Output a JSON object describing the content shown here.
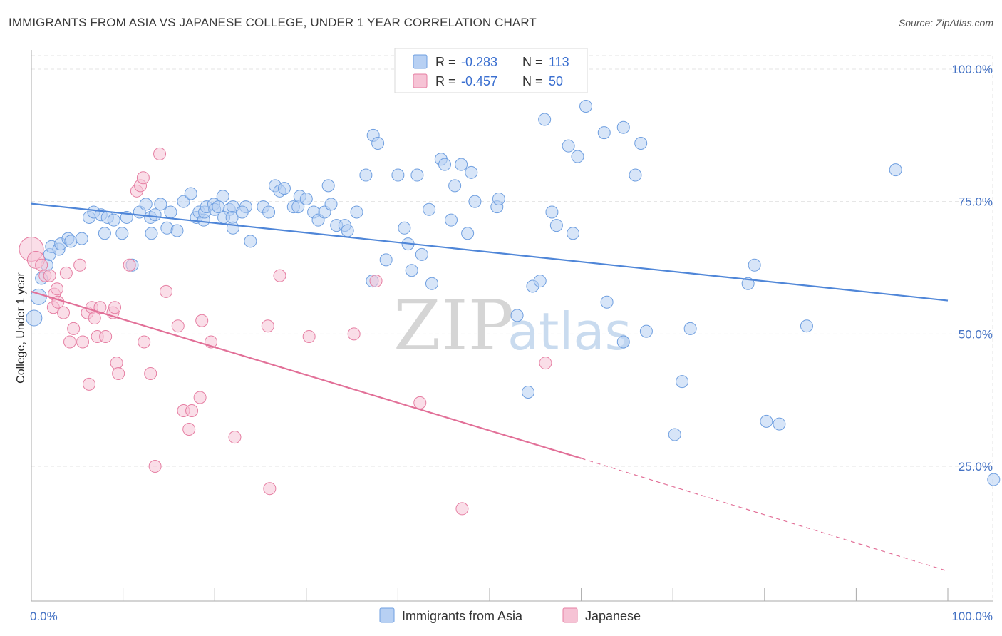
{
  "chart_data": {
    "type": "scatter",
    "title": "IMMIGRANTS FROM ASIA VS JAPANESE COLLEGE, UNDER 1 YEAR CORRELATION CHART",
    "source": "Source: ZipAtlas.com",
    "ylabel": "College, Under 1 year",
    "xlim": [
      0,
      100
    ],
    "ylim": [
      0,
      105
    ],
    "x_tick_labels": [
      "0.0%",
      "100.0%"
    ],
    "y_tick_values": [
      25,
      50,
      75,
      100
    ],
    "y_tick_labels": [
      "25.0%",
      "50.0%",
      "75.0%",
      "100.0%"
    ],
    "watermark": {
      "zip": "ZIP",
      "atlas": "atlas"
    },
    "legend": [
      {
        "name": "Immigrants from Asia",
        "r_label": "R =",
        "r": "-0.283",
        "n_label": "N =",
        "n": "113",
        "color": "#6f9fe0",
        "fill": "#b7d0f3"
      },
      {
        "name": "Japanese",
        "r_label": "R =",
        "r": "-0.457",
        "n_label": "N =",
        "n": "50",
        "color": "#e67fa3",
        "fill": "#f6c3d5"
      }
    ],
    "series": [
      {
        "name": "Immigrants from Asia",
        "color": "#4f86d8",
        "trend": {
          "x0": 0,
          "y0": 74.6,
          "x1": 100,
          "y1": 56.3
        },
        "points": [
          [
            0.3,
            53
          ],
          [
            0.8,
            57
          ],
          [
            1.1,
            60.5
          ],
          [
            1.7,
            63
          ],
          [
            2,
            65
          ],
          [
            2.2,
            66.5
          ],
          [
            3,
            66
          ],
          [
            3.2,
            67
          ],
          [
            4,
            68
          ],
          [
            4.3,
            67.5
          ],
          [
            5.5,
            68
          ],
          [
            6.3,
            72
          ],
          [
            6.8,
            73
          ],
          [
            7.6,
            72.5
          ],
          [
            8,
            69
          ],
          [
            8.3,
            72
          ],
          [
            9,
            71.5
          ],
          [
            9.9,
            69
          ],
          [
            10.4,
            72
          ],
          [
            11,
            63
          ],
          [
            11.8,
            73
          ],
          [
            12.5,
            74.5
          ],
          [
            13,
            72
          ],
          [
            13.1,
            69
          ],
          [
            13.5,
            72.5
          ],
          [
            14.1,
            74.5
          ],
          [
            14.8,
            70
          ],
          [
            15.2,
            73
          ],
          [
            15.9,
            69.5
          ],
          [
            16.6,
            75
          ],
          [
            17.4,
            76.5
          ],
          [
            18,
            72
          ],
          [
            18.3,
            73
          ],
          [
            18.8,
            71.5
          ],
          [
            18.9,
            73
          ],
          [
            19.1,
            74
          ],
          [
            19.9,
            74.5
          ],
          [
            20,
            73.5
          ],
          [
            20.9,
            76
          ],
          [
            21.6,
            73.5
          ],
          [
            20.4,
            74
          ],
          [
            21,
            72
          ],
          [
            22,
            74
          ],
          [
            21.9,
            72
          ],
          [
            22,
            70
          ],
          [
            23.4,
            74
          ],
          [
            23,
            73
          ],
          [
            23.9,
            67.5
          ],
          [
            25.3,
            74
          ],
          [
            25.9,
            73
          ],
          [
            26.6,
            78
          ],
          [
            27.1,
            77
          ],
          [
            27.6,
            77.5
          ],
          [
            28.6,
            74
          ],
          [
            29.1,
            74
          ],
          [
            29.3,
            76
          ],
          [
            30,
            75.5
          ],
          [
            30.8,
            73
          ],
          [
            31.3,
            71.5
          ],
          [
            32,
            73
          ],
          [
            32.4,
            78
          ],
          [
            32.7,
            74.5
          ],
          [
            33.3,
            70.5
          ],
          [
            34.2,
            70.5
          ],
          [
            34.5,
            69.5
          ],
          [
            35.5,
            73
          ],
          [
            36.5,
            80
          ],
          [
            37.3,
            87.5
          ],
          [
            37.8,
            86
          ],
          [
            37.2,
            60
          ],
          [
            38.7,
            64
          ],
          [
            40,
            80
          ],
          [
            40.7,
            70
          ],
          [
            41.1,
            67
          ],
          [
            41.5,
            62
          ],
          [
            42.1,
            80
          ],
          [
            42.6,
            65
          ],
          [
            43.4,
            73.5
          ],
          [
            43.7,
            59.5
          ],
          [
            44.7,
            83
          ],
          [
            45.1,
            82
          ],
          [
            45.8,
            71.5
          ],
          [
            46.2,
            78
          ],
          [
            46.9,
            82
          ],
          [
            47.6,
            69
          ],
          [
            48,
            80.5
          ],
          [
            48.4,
            75
          ],
          [
            50.8,
            74
          ],
          [
            51,
            75.5
          ],
          [
            53,
            53.5
          ],
          [
            54.2,
            39
          ],
          [
            54.7,
            59
          ],
          [
            55.5,
            60
          ],
          [
            56,
            90.5
          ],
          [
            56.8,
            73
          ],
          [
            57.3,
            70.5
          ],
          [
            58.6,
            85.5
          ],
          [
            59.1,
            69
          ],
          [
            59.6,
            83.5
          ],
          [
            60.5,
            93
          ],
          [
            62.5,
            88
          ],
          [
            62.8,
            56
          ],
          [
            64.6,
            48.5
          ],
          [
            64.6,
            89
          ],
          [
            65.9,
            80
          ],
          [
            66.5,
            86
          ],
          [
            67.1,
            50.5
          ],
          [
            70.2,
            31
          ],
          [
            71,
            41
          ],
          [
            71.9,
            51
          ],
          [
            78.2,
            59.5
          ],
          [
            78.9,
            63
          ],
          [
            80.2,
            33.5
          ],
          [
            81.6,
            33
          ],
          [
            84.6,
            51.5
          ],
          [
            94.3,
            81
          ],
          [
            105,
            22.5
          ]
        ]
      },
      {
        "name": "Japanese",
        "color": "#e27098",
        "trend": {
          "x0": 0,
          "y0": 58,
          "x1": 60,
          "y1": 26.5
        },
        "trend_dashed": {
          "x0": 60,
          "y0": 26.5,
          "x1": 100,
          "y1": 5.2
        },
        "points": [
          [
            0,
            66
          ],
          [
            0.5,
            64
          ],
          [
            1.1,
            63
          ],
          [
            1.5,
            61
          ],
          [
            2,
            61
          ],
          [
            2.5,
            57.5
          ],
          [
            2.8,
            58.5
          ],
          [
            2.4,
            55
          ],
          [
            2.9,
            56
          ],
          [
            3.5,
            54
          ],
          [
            3.8,
            61.5
          ],
          [
            4.2,
            48.5
          ],
          [
            4.6,
            51
          ],
          [
            5.3,
            63
          ],
          [
            5.6,
            48.5
          ],
          [
            6.1,
            54
          ],
          [
            6.3,
            40.5
          ],
          [
            6.6,
            55
          ],
          [
            6.9,
            53
          ],
          [
            7.2,
            49.5
          ],
          [
            7.5,
            55
          ],
          [
            8.1,
            49.5
          ],
          [
            8.9,
            54
          ],
          [
            9.1,
            55
          ],
          [
            9.3,
            44.5
          ],
          [
            9.5,
            42.5
          ],
          [
            10.7,
            63
          ],
          [
            11.5,
            77
          ],
          [
            11.9,
            78
          ],
          [
            12.2,
            79.5
          ],
          [
            12.3,
            48.5
          ],
          [
            13,
            42.5
          ],
          [
            13.5,
            25
          ],
          [
            14,
            84
          ],
          [
            14.7,
            58
          ],
          [
            16,
            51.5
          ],
          [
            16.6,
            35.5
          ],
          [
            17.2,
            32
          ],
          [
            17.5,
            35.5
          ],
          [
            18.4,
            38
          ],
          [
            18.6,
            52.5
          ],
          [
            19.6,
            48.5
          ],
          [
            22.2,
            30.5
          ],
          [
            25.8,
            51.5
          ],
          [
            26,
            20.8
          ],
          [
            27.1,
            61
          ],
          [
            30.3,
            49.5
          ],
          [
            35.2,
            50
          ],
          [
            37.6,
            60
          ],
          [
            42.4,
            37
          ],
          [
            47,
            17
          ],
          [
            56.1,
            44.5
          ]
        ]
      }
    ]
  }
}
